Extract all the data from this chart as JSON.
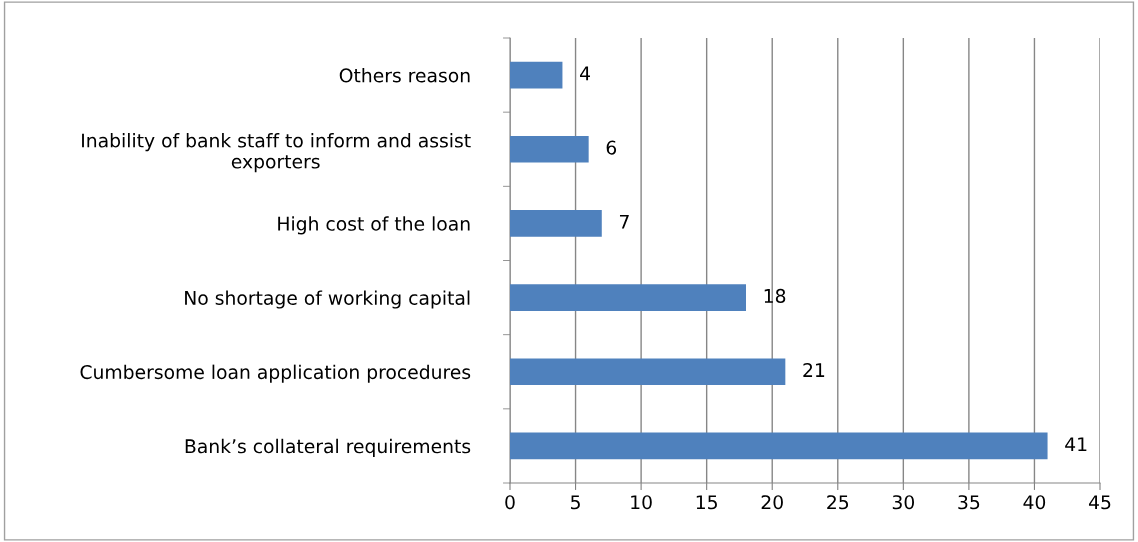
{
  "chart_data": {
    "type": "bar",
    "orientation": "horizontal",
    "categories": [
      "Others reason",
      "Inability of bank staff to inform and assist\nexporters",
      "High cost of the loan",
      "No shortage of working capital",
      "Cumbersome loan application procedures",
      "Bank’s collateral requirements"
    ],
    "values": [
      4,
      6,
      7,
      18,
      21,
      41
    ],
    "color": "#4f81bd",
    "xlim": [
      0,
      45
    ],
    "xticks": [
      0,
      5,
      10,
      15,
      20,
      25,
      30,
      35,
      40,
      45
    ],
    "grid": "x",
    "data_labels": true
  }
}
